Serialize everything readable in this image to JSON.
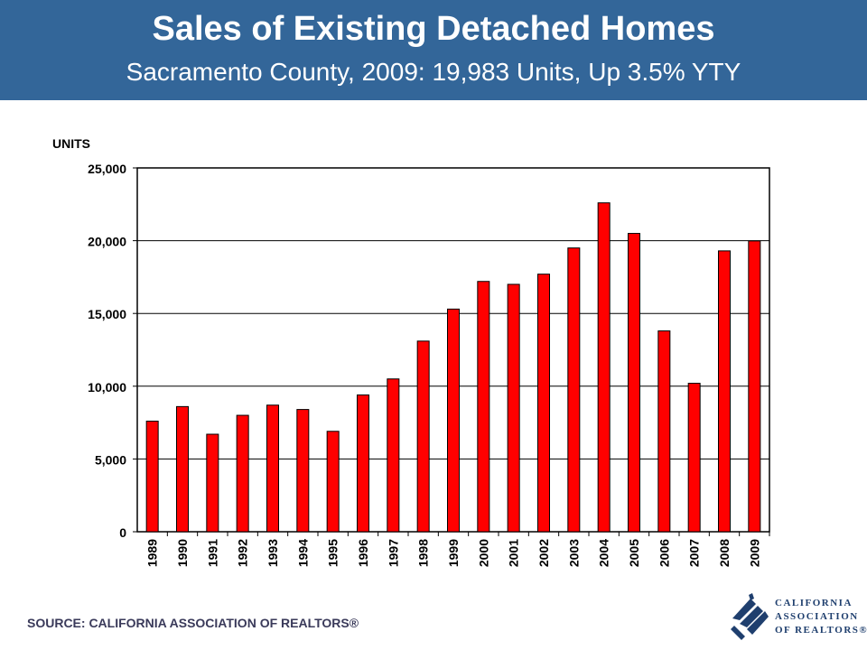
{
  "header": {
    "title": "Sales of Existing Detached Homes",
    "subtitle": "Sacramento County, 2009: 19,983 Units, Up 3.5% YTY"
  },
  "footer": {
    "source": "SOURCE: CALIFORNIA ASSOCIATION OF REALTORS®"
  },
  "logo": {
    "line1": "CALIFORNIA",
    "line2": "ASSOCIATION",
    "line3": "OF REALTORS®",
    "icon": "car-logo-icon"
  },
  "colors": {
    "header_bg": "#336699",
    "bar_fill": "#ff0000",
    "bar_stroke": "#000000"
  },
  "chart_data": {
    "type": "bar",
    "title": "",
    "ylabel": "UNITS",
    "xlabel": "",
    "ylim": [
      0,
      25000
    ],
    "yticks": [
      0,
      5000,
      10000,
      15000,
      20000,
      25000
    ],
    "ytick_labels": [
      "0",
      "5,000",
      "10,000",
      "15,000",
      "20,000",
      "25,000"
    ],
    "grid": true,
    "categories": [
      "1989",
      "1990",
      "1991",
      "1992",
      "1993",
      "1994",
      "1995",
      "1996",
      "1997",
      "1998",
      "1999",
      "2000",
      "2001",
      "2002",
      "2003",
      "2004",
      "2005",
      "2006",
      "2007",
      "2008",
      "2009"
    ],
    "values": [
      7600,
      8600,
      6700,
      8000,
      8700,
      8400,
      6900,
      9400,
      10500,
      13100,
      15300,
      17200,
      17000,
      17700,
      19500,
      22600,
      20500,
      13800,
      10200,
      19300,
      19983
    ]
  }
}
